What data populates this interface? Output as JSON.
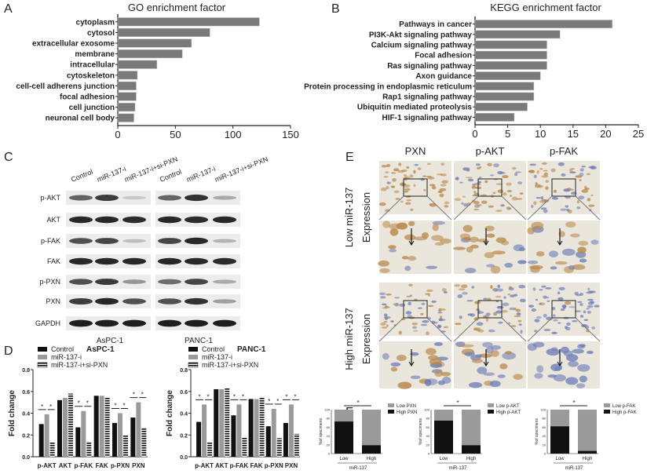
{
  "colors": {
    "bar": "#7a7a7a",
    "black": "#111111",
    "grey": "#9a9a9a",
    "brown": "#b98a4e",
    "hematoxylin": "#6f7fb8"
  },
  "panels": {
    "A": "A",
    "B": "B",
    "C": "C",
    "D": "D",
    "E": "E",
    "F": "F"
  },
  "chart_data": [
    {
      "id": "A",
      "type": "bar",
      "orientation": "horizontal",
      "title": "GO enrichment factor",
      "xlim": [
        0,
        150
      ],
      "xticks": [
        "0",
        "50",
        "100",
        "150"
      ],
      "categories": [
        "cytoplasm",
        "cytosol",
        "extracellular exosome",
        "membrane",
        "intracellular",
        "cytoskeleton",
        "cell-cell adherens junction",
        "focal adhesion",
        "cell junction",
        "neuronal cell body"
      ],
      "values": [
        123,
        80,
        64,
        56,
        34,
        17,
        16,
        16,
        15,
        14
      ]
    },
    {
      "id": "B",
      "type": "bar",
      "orientation": "horizontal",
      "title": "KEGG enrichment factor",
      "xlim": [
        0,
        25
      ],
      "xticks": [
        "0",
        "5",
        "10",
        "15",
        "20",
        "25"
      ],
      "categories": [
        "Pathways in cancer",
        "PI3K-Akt signaling pathway",
        "Calcium signaling pathway",
        "Focal adhesion",
        "Ras signaling pathway",
        "Axon guidance",
        "Protein processing in endoplasmic reticulum",
        "Rap1 signaling pathway",
        "Ubiquitin mediated proteolysis",
        "HIF-1 signaling pathway"
      ],
      "values": [
        21,
        13,
        11,
        11,
        11,
        10,
        9,
        9,
        8,
        6
      ]
    },
    {
      "id": "D1",
      "type": "bar",
      "title": "AsPC-1",
      "ylabel": "Fold change",
      "ylim": [
        0,
        0.8
      ],
      "yticks": [
        "0.0",
        "0.2",
        "0.4",
        "0.6",
        "0.8"
      ],
      "categories": [
        "p-AKT",
        "AKT",
        "p-FAK",
        "FAK",
        "p-PXN",
        "PXN"
      ],
      "series": [
        {
          "name": "Control",
          "values": [
            0.3,
            0.52,
            0.27,
            0.56,
            0.31,
            0.36
          ]
        },
        {
          "name": "miR-137-i",
          "values": [
            0.39,
            0.54,
            0.42,
            0.56,
            0.4,
            0.5
          ]
        },
        {
          "name": "miR-137-i+si-PXN",
          "values": [
            0.13,
            0.58,
            0.14,
            0.55,
            0.2,
            0.27
          ]
        }
      ],
      "significance": [
        "p-AKT",
        "p-FAK",
        "p-PXN",
        "PXN"
      ],
      "sig_mark": "*"
    },
    {
      "id": "D2",
      "type": "bar",
      "title": "PANC-1",
      "ylabel": "Fold change",
      "ylim": [
        0,
        0.8
      ],
      "yticks": [
        "0.0",
        "0.2",
        "0.4",
        "0.6",
        "0.8"
      ],
      "categories": [
        "p-AKT",
        "AKT",
        "p-FAK",
        "FAK",
        "p-PXN",
        "PXN"
      ],
      "series": [
        {
          "name": "Control",
          "values": [
            0.32,
            0.62,
            0.38,
            0.53,
            0.28,
            0.31
          ]
        },
        {
          "name": "miR-137-i",
          "values": [
            0.48,
            0.62,
            0.48,
            0.53,
            0.44,
            0.48
          ]
        },
        {
          "name": "miR-137-i+si-PXN",
          "values": [
            0.13,
            0.63,
            0.18,
            0.55,
            0.17,
            0.21
          ]
        }
      ],
      "significance": [
        "p-AKT",
        "p-FAK",
        "p-PXN",
        "PXN"
      ],
      "sig_mark": "*"
    },
    {
      "id": "F1",
      "type": "bar",
      "stacked": true,
      "ylabel": "%of specimens",
      "xlabel": "miR-137",
      "ylim": [
        0,
        100
      ],
      "yticks": [
        "0",
        "20",
        "40",
        "60",
        "80",
        "100"
      ],
      "categories": [
        "Low",
        "High"
      ],
      "series": [
        {
          "name": "High PXN",
          "values": [
            73,
            19
          ]
        },
        {
          "name": "Low PXN",
          "values": [
            27,
            81
          ]
        }
      ],
      "sig_mark": "*"
    },
    {
      "id": "F2",
      "type": "bar",
      "stacked": true,
      "ylabel": "%of specimens",
      "xlabel": "miR-137",
      "ylim": [
        0,
        100
      ],
      "yticks": [
        "0",
        "20",
        "40",
        "60",
        "80",
        "100"
      ],
      "categories": [
        "Low",
        "High"
      ],
      "series": [
        {
          "name": "High p-AKT",
          "values": [
            75,
            19
          ]
        },
        {
          "name": "Low p-AKT",
          "values": [
            25,
            81
          ]
        }
      ],
      "sig_mark": "*"
    },
    {
      "id": "F3",
      "type": "bar",
      "stacked": true,
      "ylabel": "%of specimens",
      "xlabel": "miR-137",
      "ylim": [
        0,
        100
      ],
      "yticks": [
        "0",
        "20",
        "40",
        "60",
        "80",
        "100"
      ],
      "categories": [
        "Low",
        "High"
      ],
      "series": [
        {
          "name": "High p-FAK",
          "values": [
            62,
            6
          ]
        },
        {
          "name": "Low p-FAK",
          "values": [
            38,
            94
          ]
        }
      ],
      "sig_mark": "*"
    }
  ],
  "western": {
    "lanes": [
      "Control",
      "miR-137-i",
      "miR-137-i+si-PXN",
      "Control",
      "miR-137-i",
      "miR-137-i+si-PXN"
    ],
    "cell_lines": [
      "AsPC-1",
      "PANC-1"
    ],
    "proteins": [
      "p-AKT",
      "AKT",
      "p-FAK",
      "FAK",
      "p-PXN",
      "PXN",
      "GAPDH"
    ],
    "intensity": [
      [
        0.6,
        0.8,
        0.1,
        0.6,
        0.85,
        0.25
      ],
      [
        0.9,
        0.9,
        0.88,
        0.9,
        0.88,
        0.9
      ],
      [
        0.7,
        0.75,
        0.15,
        0.75,
        0.9,
        0.2
      ],
      [
        0.9,
        0.9,
        0.9,
        0.9,
        0.9,
        0.88
      ],
      [
        0.7,
        0.8,
        0.35,
        0.55,
        0.75,
        0.25
      ],
      [
        0.8,
        0.9,
        0.7,
        0.7,
        0.85,
        0.3
      ],
      [
        0.95,
        0.95,
        0.95,
        0.95,
        0.95,
        0.95
      ]
    ]
  },
  "ihc": {
    "columns": [
      "PXN",
      "p-AKT",
      "p-FAK"
    ],
    "rows": [
      {
        "line1": "Low miR-137",
        "line2": "Expression"
      },
      {
        "line1": "High miR-137",
        "line2": "Expression"
      }
    ],
    "brown_level": [
      [
        0.9,
        0.6,
        0.5
      ],
      [
        0.45,
        0.4,
        0.02
      ]
    ]
  }
}
